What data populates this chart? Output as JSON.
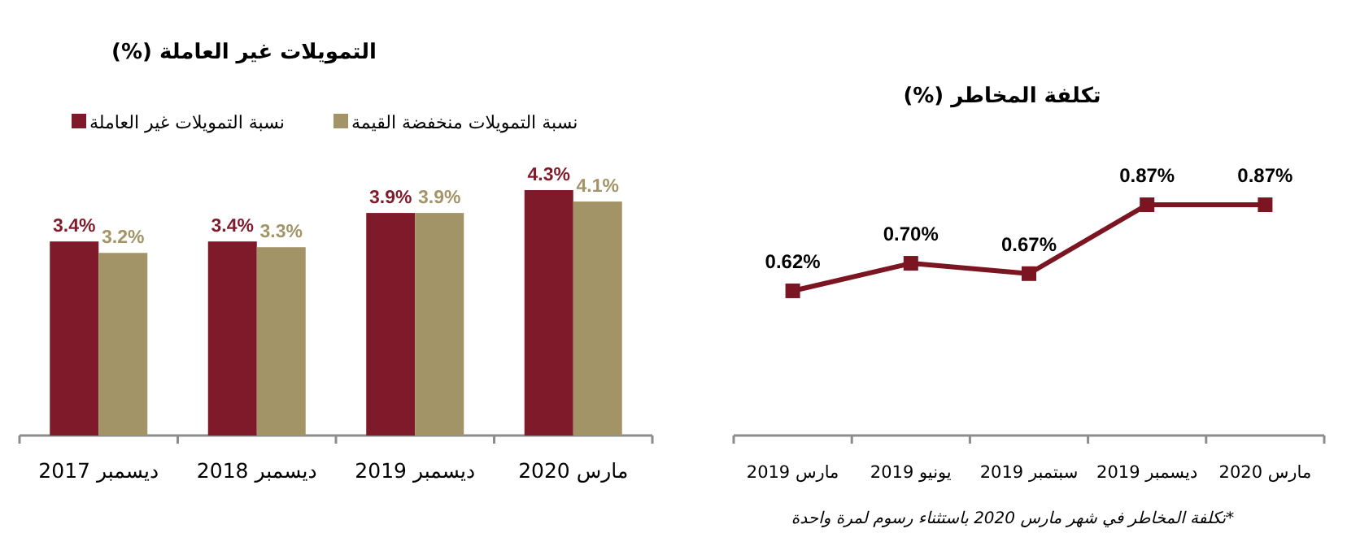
{
  "chart_data": [
    {
      "type": "bar",
      "title": "التمويلات غير العاملة (%)",
      "categories": [
        "ديسمبر 2017",
        "ديسمبر 2018",
        "ديسمبر 2019",
        "مارس 2020"
      ],
      "legend": "top",
      "series": [
        {
          "name": "نسبة التمويلات غير العاملة",
          "color": "#7f1a2a",
          "values": [
            3.4,
            3.4,
            3.9,
            4.3
          ],
          "value_labels": [
            "3.4%",
            "3.4%",
            "3.9%",
            "4.3%"
          ]
        },
        {
          "name": "نسبة التمويلات منخفضة القيمة",
          "color": "#a39468",
          "values": [
            3.2,
            3.3,
            3.9,
            4.1
          ],
          "value_labels": [
            "3.2%",
            "3.3%",
            "3.9%",
            "4.1%"
          ]
        }
      ]
    },
    {
      "type": "line",
      "title": "تكلفة المخاطر (%)",
      "categories": [
        "مارس 2019",
        "يونيو 2019",
        "سبتمبر 2019",
        "ديسمبر 2019",
        "مارس 2020"
      ],
      "marker": "square",
      "line_style": "solid",
      "series": [
        {
          "color": "#7b1522",
          "values": [
            0.62,
            0.7,
            0.67,
            0.87,
            0.87
          ],
          "value_labels": [
            "0.62%",
            "0.70%",
            "0.67%",
            "0.87%",
            "0.87%"
          ]
        }
      ],
      "annotations": [
        "*تكلفة المخاطر في شهر مارس 2020 باستثناء رسوم لمرة واحدة"
      ]
    }
  ]
}
